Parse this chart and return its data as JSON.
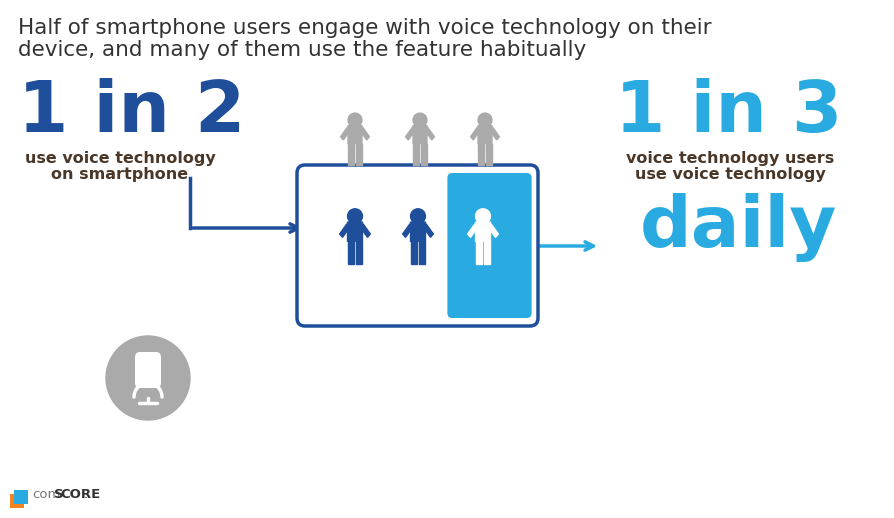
{
  "title_line1": "Half of smartphone users engage with voice technology on their",
  "title_line2": "device, and many of them use the feature habitually",
  "stat1_big": "1 in 2",
  "stat1_sub1": "use voice technology",
  "stat1_sub2": "on smartphone",
  "stat2_big": "1 in 3",
  "stat2_sub1": "voice technology users",
  "stat2_sub2": "use voice technology",
  "stat2_word": "daily",
  "dark_blue": "#1F4E9B",
  "cyan_blue": "#29ABE2",
  "gray_person": "#AAAAAA",
  "dark_blue_person": "#1F4E9B",
  "box_border": "#1F4E9B",
  "mic_circle": "#AAAAAA",
  "background": "#FFFFFF",
  "title_color": "#333333",
  "sub_text_color": "#4A3728",
  "comscore_gray": "#777777",
  "fig_w": 8.94,
  "fig_h": 5.18,
  "dpi": 100
}
